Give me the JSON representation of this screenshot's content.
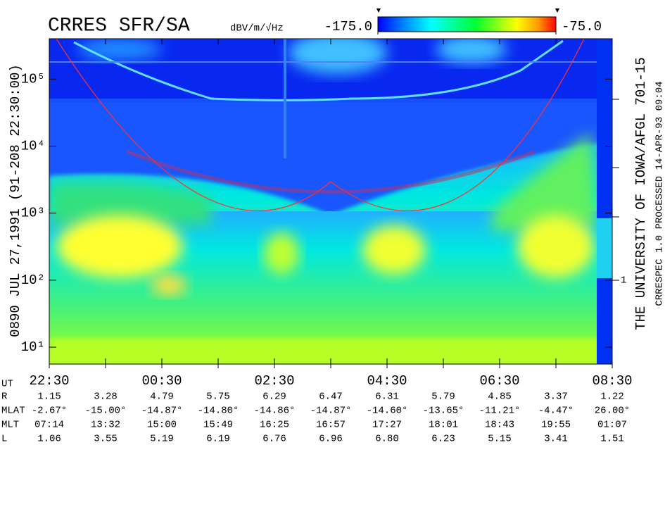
{
  "chart_data": {
    "type": "spectrogram",
    "title": "CRRES SFR/SA",
    "colorbar": {
      "units": "dBV/m/√Hz",
      "lim": [
        -175,
        -75
      ],
      "ticks": [
        {
          "value": -175,
          "label": "-175.0"
        },
        {
          "value": -75,
          "label": "-75.0"
        }
      ]
    },
    "ylabel": "0890   JUL 27,1991   (91-208 22:30:00)",
    "right_label": "THE UNIVERSITY OF IOWA/AFGL 701-15",
    "credit": "CRRESPEC 1.0   PROCESSED 14-APR-93  09:04",
    "log_y": true,
    "ylim": [
      5.6,
      400000
    ],
    "yticks": [
      {
        "value": 10,
        "label": "10¹"
      },
      {
        "value": 100,
        "label": "10²"
      },
      {
        "value": 1000,
        "label": "10³"
      },
      {
        "value": 10000,
        "label": "10⁴"
      },
      {
        "value": 100000,
        "label": "10⁵"
      }
    ],
    "right_axis_label": "1",
    "ephemeris": {
      "rows": [
        {
          "name": "UT",
          "values": [
            "22:30",
            null,
            "00:30",
            null,
            "02:30",
            null,
            "04:30",
            null,
            "06:30",
            null,
            "08:30"
          ]
        },
        {
          "name": "R",
          "values": [
            "1.15",
            "3.28",
            "4.79",
            "5.75",
            "6.29",
            "6.47",
            "6.31",
            "5.79",
            "4.85",
            "3.37",
            "1.22"
          ]
        },
        {
          "name": "MLAT",
          "values": [
            "-2.67°",
            "-15.00°",
            "-14.87°",
            "-14.80°",
            "-14.86°",
            "-14.87°",
            "-14.60°",
            "-13.65°",
            "-11.21°",
            "-4.47°",
            "26.00°"
          ]
        },
        {
          "name": "MLT",
          "values": [
            "07:14",
            "13:32",
            "15:00",
            "15:49",
            "16:25",
            "16:57",
            "17:27",
            "18:01",
            "18:43",
            "19:55",
            "01:07"
          ]
        },
        {
          "name": "L",
          "values": [
            "1.06",
            "3.55",
            "5.19",
            "6.19",
            "6.76",
            "6.96",
            "6.80",
            "6.23",
            "5.15",
            "3.41",
            "1.51"
          ]
        }
      ]
    }
  }
}
